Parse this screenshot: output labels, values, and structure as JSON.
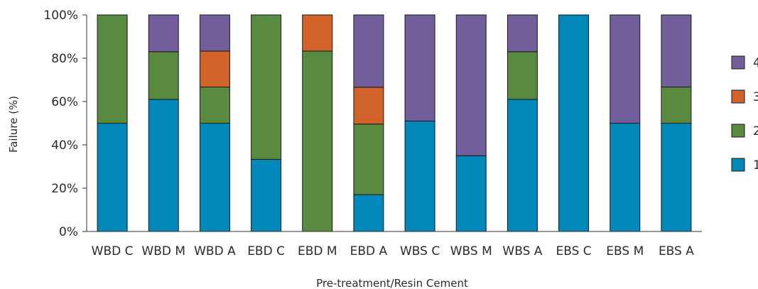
{
  "chart_data": {
    "type": "bar",
    "stacked": true,
    "title": "",
    "xlabel": "Pre-treatment/Resin Cement",
    "ylabel": "Failure (%)",
    "ylim": [
      0,
      100
    ],
    "yticks": [
      "0%",
      "20%",
      "40%",
      "60%",
      "80%",
      "100%"
    ],
    "grid": false,
    "legend_position": "right",
    "legend_order": [
      "4",
      "3",
      "2",
      "1"
    ],
    "categories": [
      "WBD C",
      "WBD M",
      "WBD A",
      "EBD C",
      "EBD M",
      "EBD A",
      "WBS C",
      "WBS M",
      "WBS A",
      "EBS C",
      "EBS M",
      "EBS A"
    ],
    "series": [
      {
        "name": "1",
        "color": "#0088b8",
        "values": [
          50,
          61,
          50,
          33.3,
          0,
          17,
          51,
          35,
          61,
          100,
          50,
          50
        ]
      },
      {
        "name": "2",
        "color": "#5a8a3f",
        "values": [
          50,
          22,
          16.7,
          66.7,
          83.3,
          32.6,
          0,
          0,
          22,
          0,
          0,
          16.7
        ]
      },
      {
        "name": "3",
        "color": "#d0622a",
        "values": [
          0,
          0,
          16.6,
          0,
          16.7,
          17,
          0,
          0,
          0,
          0,
          0,
          0
        ]
      },
      {
        "name": "4",
        "color": "#725e9a",
        "values": [
          0,
          17,
          16.7,
          0,
          0,
          33.4,
          49,
          65,
          17,
          0,
          50,
          33.3
        ]
      }
    ]
  }
}
